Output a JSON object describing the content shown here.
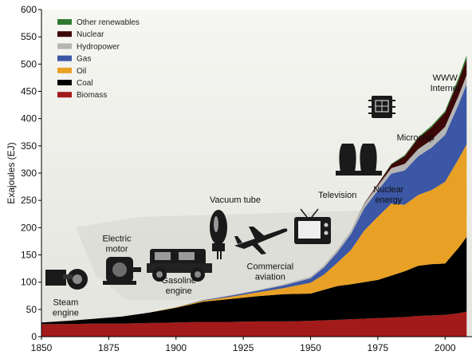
{
  "chart_data": {
    "type": "area",
    "stacked": true,
    "title": "",
    "xlabel": "",
    "ylabel": "Exajoules (EJ)",
    "xlim": [
      1850,
      2010
    ],
    "ylim": [
      0,
      600
    ],
    "x_ticks": [
      1850,
      1875,
      1900,
      1925,
      1950,
      1975,
      2000
    ],
    "y_ticks": [
      0,
      50,
      100,
      150,
      200,
      250,
      300,
      350,
      400,
      450,
      500,
      550,
      600
    ],
    "grid": false,
    "legend_position": "top-left",
    "x": [
      1850,
      1860,
      1870,
      1880,
      1890,
      1900,
      1910,
      1920,
      1930,
      1940,
      1950,
      1955,
      1960,
      1965,
      1970,
      1975,
      1980,
      1985,
      1990,
      1995,
      2000,
      2005,
      2008
    ],
    "series": [
      {
        "name": "Biomass",
        "color": "#a31a1a",
        "values": [
          23,
          23,
          24,
          24,
          25,
          26,
          27,
          27,
          28,
          28,
          29,
          30,
          31,
          32,
          33,
          34,
          35,
          36,
          38,
          39,
          40,
          43,
          46
        ]
      },
      {
        "name": "Coal",
        "color": "#000000",
        "values": [
          3,
          6,
          9,
          13,
          19,
          27,
          37,
          42,
          46,
          50,
          50,
          56,
          62,
          64,
          67,
          70,
          77,
          84,
          92,
          94,
          94,
          120,
          137
        ]
      },
      {
        "name": "Oil",
        "color": "#e8a025",
        "values": [
          0,
          0,
          0,
          0,
          0,
          1,
          2,
          4,
          7,
          11,
          20,
          28,
          43,
          63,
          95,
          116,
          132,
          122,
          130,
          136,
          150,
          163,
          170
        ]
      },
      {
        "name": "Gas",
        "color": "#3b57a6",
        "values": [
          0,
          0,
          0,
          0,
          0,
          0,
          1,
          2,
          3,
          5,
          8,
          13,
          19,
          29,
          41,
          48,
          55,
          63,
          71,
          78,
          86,
          100,
          110
        ]
      },
      {
        "name": "Hydropower",
        "color": "#b5b5b5",
        "values": [
          0,
          0,
          0,
          0,
          0,
          0,
          0,
          1,
          1,
          2,
          3,
          4,
          5,
          6,
          8,
          9,
          10,
          12,
          13,
          14,
          15,
          16,
          17
        ]
      },
      {
        "name": "Nuclear",
        "color": "#3d0808",
        "values": [
          0,
          0,
          0,
          0,
          0,
          0,
          0,
          0,
          0,
          0,
          0,
          0,
          0,
          0,
          1,
          3,
          7,
          14,
          20,
          23,
          26,
          28,
          29
        ]
      },
      {
        "name": "Other renewables",
        "color": "#2e7a2e",
        "values": [
          0,
          0,
          0,
          0,
          0,
          0,
          0,
          0,
          0,
          0,
          0,
          0,
          0,
          0,
          0,
          0,
          1,
          2,
          2,
          3,
          3,
          5,
          7
        ]
      }
    ],
    "legend_order": [
      "Other renewables",
      "Nuclear",
      "Hydropower",
      "Gas",
      "Oil",
      "Coal",
      "Biomass"
    ],
    "annotations": [
      {
        "lines": [
          "Steam",
          "engine"
        ],
        "x": 1859,
        "y": 58,
        "icon": "steam-engine-icon"
      },
      {
        "lines": [
          "Electric",
          "motor"
        ],
        "x": 1878,
        "y": 175,
        "icon": "electric-motor-icon"
      },
      {
        "lines": [
          "Gasoline",
          "engine"
        ],
        "x": 1901,
        "y": 98,
        "icon": "gasoline-engine-icon"
      },
      {
        "lines": [
          "Vacuum tube"
        ],
        "x": 1922,
        "y": 246,
        "icon": "vacuum-tube-icon"
      },
      {
        "lines": [
          "Commercial",
          "aviation"
        ],
        "x": 1935,
        "y": 124,
        "icon": "airplane-icon"
      },
      {
        "lines": [
          "Television"
        ],
        "x": 1960,
        "y": 255,
        "icon": "television-icon"
      },
      {
        "lines": [
          "Nuclear",
          "energy"
        ],
        "x": 1979,
        "y": 265,
        "icon": "nuclear-plant-icon"
      },
      {
        "lines": [
          "Microchip"
        ],
        "x": 1989,
        "y": 360,
        "icon": "microchip-icon"
      },
      {
        "lines": [
          "WWW",
          "Internet"
        ],
        "x": 2000,
        "y": 470,
        "icon": ""
      }
    ]
  }
}
